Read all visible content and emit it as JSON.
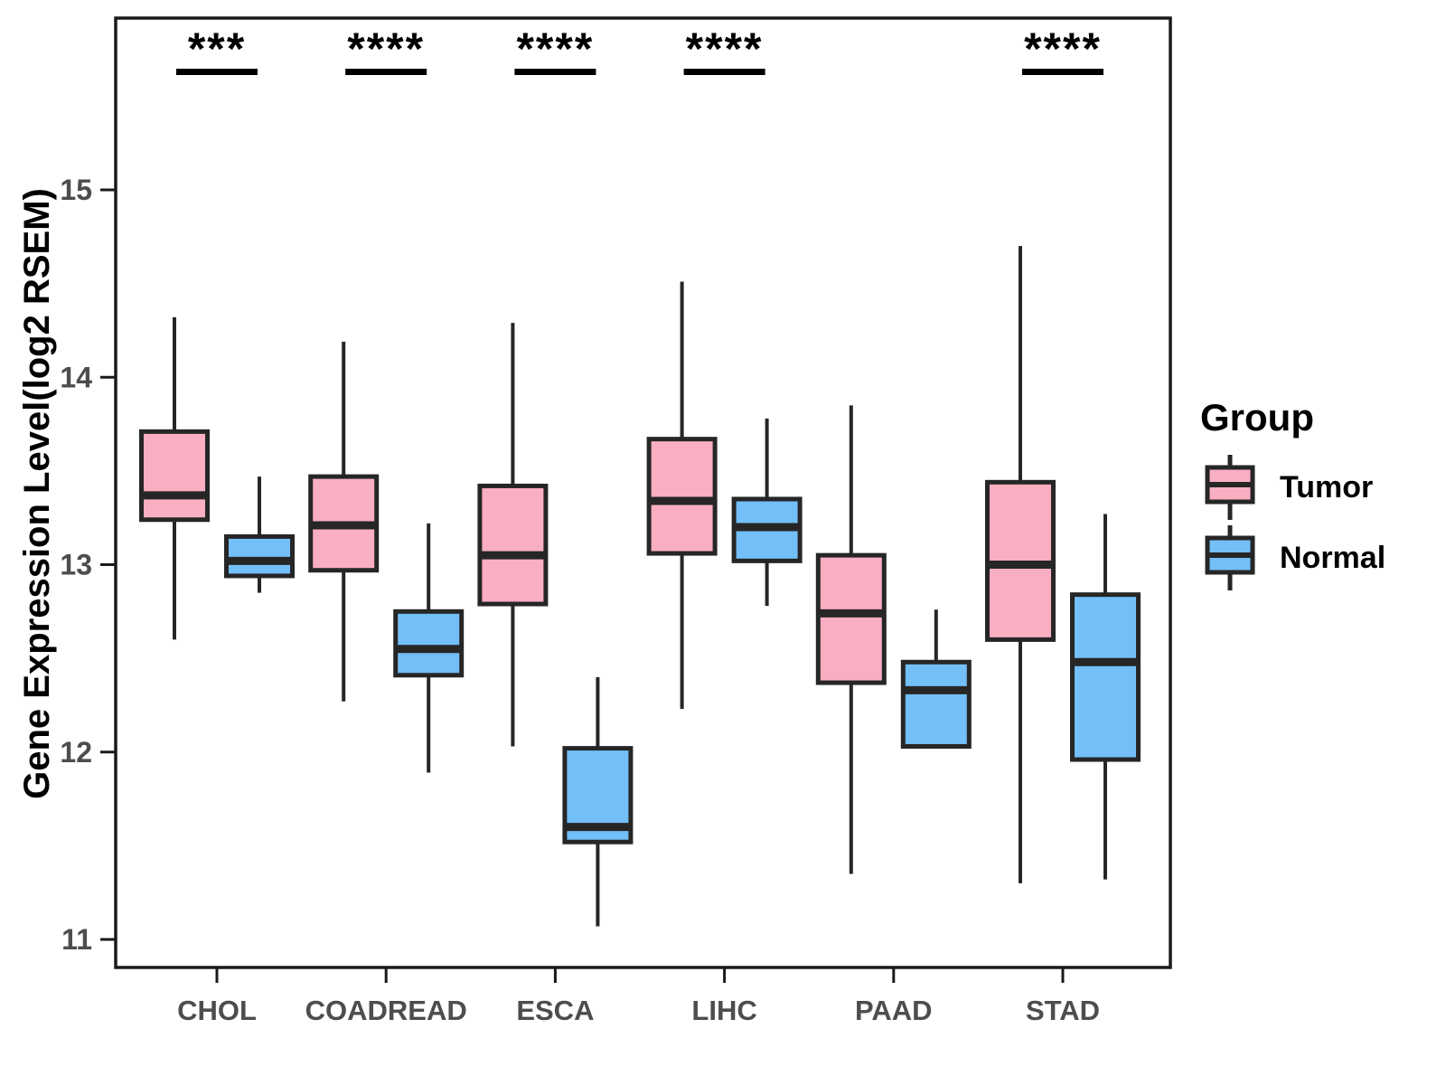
{
  "chart_data": {
    "type": "boxplot",
    "title": "",
    "xlabel": "",
    "ylabel": "Gene Expression Level(log2 RSEM)",
    "y_ticks": [
      11,
      12,
      13,
      14,
      15
    ],
    "ylim": [
      10.85,
      15.92
    ],
    "grid": false,
    "categories": [
      "CHOL",
      "COADREAD",
      "ESCA",
      "LIHC",
      "PAAD",
      "STAD"
    ],
    "significance": [
      "***",
      "****",
      "****",
      "****",
      "",
      "****"
    ],
    "series": [
      {
        "name": "Tumor",
        "color": "#FAAEC1",
        "boxes": [
          {
            "category": "CHOL",
            "whisker_low": 12.6,
            "q1": 13.24,
            "median": 13.37,
            "q3": 13.71,
            "whisker_high": 14.32
          },
          {
            "category": "COADREAD",
            "whisker_low": 12.27,
            "q1": 12.97,
            "median": 13.21,
            "q3": 13.47,
            "whisker_high": 14.19
          },
          {
            "category": "ESCA",
            "whisker_low": 12.03,
            "q1": 12.79,
            "median": 13.05,
            "q3": 13.42,
            "whisker_high": 14.29
          },
          {
            "category": "LIHC",
            "whisker_low": 12.23,
            "q1": 13.06,
            "median": 13.34,
            "q3": 13.67,
            "whisker_high": 14.51
          },
          {
            "category": "PAAD",
            "whisker_low": 11.35,
            "q1": 12.37,
            "median": 12.74,
            "q3": 13.05,
            "whisker_high": 13.85
          },
          {
            "category": "STAD",
            "whisker_low": 11.3,
            "q1": 12.6,
            "median": 13.0,
            "q3": 13.44,
            "whisker_high": 14.7
          }
        ]
      },
      {
        "name": "Normal",
        "color": "#73BFF8",
        "boxes": [
          {
            "category": "CHOL",
            "whisker_low": 12.85,
            "q1": 12.94,
            "median": 13.02,
            "q3": 13.15,
            "whisker_high": 13.47
          },
          {
            "category": "COADREAD",
            "whisker_low": 11.89,
            "q1": 12.41,
            "median": 12.55,
            "q3": 12.75,
            "whisker_high": 13.22
          },
          {
            "category": "ESCA",
            "whisker_low": 11.07,
            "q1": 11.52,
            "median": 11.6,
            "q3": 12.02,
            "whisker_high": 12.4
          },
          {
            "category": "LIHC",
            "whisker_low": 12.78,
            "q1": 13.02,
            "median": 13.2,
            "q3": 13.35,
            "whisker_high": 13.78
          },
          {
            "category": "PAAD",
            "whisker_low": 12.03,
            "q1": 12.03,
            "median": 12.33,
            "q3": 12.48,
            "whisker_high": 12.76
          },
          {
            "category": "STAD",
            "whisker_low": 11.32,
            "q1": 11.96,
            "median": 12.48,
            "q3": 12.84,
            "whisker_high": 13.27
          }
        ]
      }
    ],
    "legend": {
      "title": "Group",
      "position": "right"
    },
    "colors": {
      "tumor_fill": "#FAAEC1",
      "normal_fill": "#73BFF8",
      "box_stroke": "#262626",
      "axis_stroke": "#1a1a1a",
      "tick_label": "#4d4d4d",
      "significance": "#000000"
    }
  }
}
